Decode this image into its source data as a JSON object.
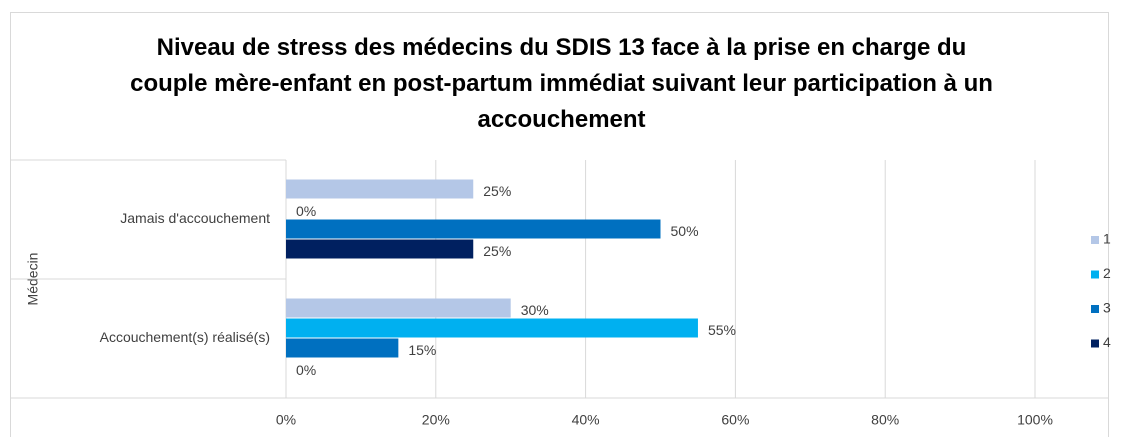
{
  "chart_data": {
    "type": "bar",
    "orientation": "horizontal",
    "title": "Niveau de stress des médecins du SDIS 13 face à la prise en charge du couple mère-enfant en post-partum immédiat suivant leur participation à un accouchement",
    "y_label": "Médecin",
    "categories": [
      "Jamais d'accouchement",
      "Accouchement(s) réalisé(s)"
    ],
    "series": [
      {
        "name": "1",
        "color": "#b4c7e7",
        "values": [
          25,
          30
        ],
        "value_labels": [
          "25%",
          "30%"
        ]
      },
      {
        "name": "2",
        "color": "#00b0f0",
        "values": [
          0,
          55
        ],
        "value_labels": [
          "0%",
          "55%"
        ]
      },
      {
        "name": "3",
        "color": "#0070c0",
        "values": [
          50,
          15
        ],
        "value_labels": [
          "50%",
          "15%"
        ]
      },
      {
        "name": "4",
        "color": "#002060",
        "values": [
          25,
          0
        ],
        "value_labels": [
          "25%",
          "0%"
        ]
      }
    ],
    "xlim": [
      0,
      100
    ],
    "xticks": [
      {
        "value": 0,
        "label": "0%"
      },
      {
        "value": 20,
        "label": "20%"
      },
      {
        "value": 40,
        "label": "40%"
      },
      {
        "value": 60,
        "label": "60%"
      },
      {
        "value": 80,
        "label": "80%"
      },
      {
        "value": 100,
        "label": "100%"
      }
    ],
    "grid": true,
    "legend": "right"
  }
}
